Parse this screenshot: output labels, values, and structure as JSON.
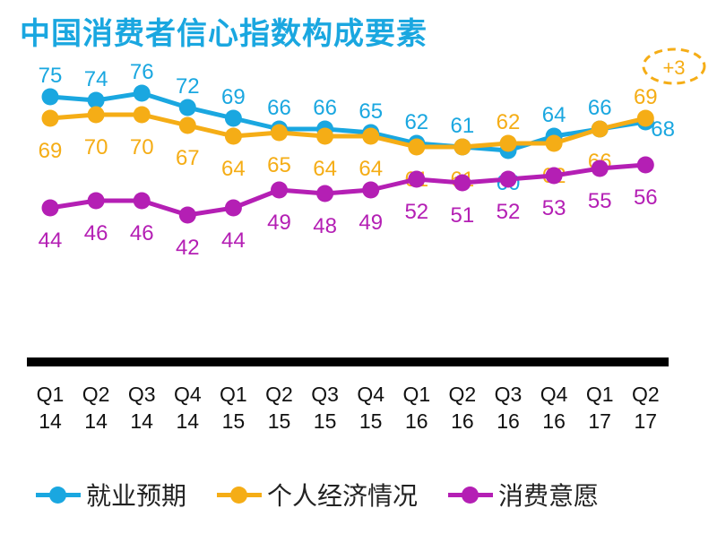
{
  "title": "中国消费者信心指数构成要素",
  "chart_data": {
    "type": "line",
    "title": "中国消费者信心指数构成要素",
    "categories": [
      {
        "q": "Q1",
        "y": "14"
      },
      {
        "q": "Q2",
        "y": "14"
      },
      {
        "q": "Q3",
        "y": "14"
      },
      {
        "q": "Q4",
        "y": "14"
      },
      {
        "q": "Q1",
        "y": "15"
      },
      {
        "q": "Q2",
        "y": "15"
      },
      {
        "q": "Q3",
        "y": "15"
      },
      {
        "q": "Q4",
        "y": "15"
      },
      {
        "q": "Q1",
        "y": "16"
      },
      {
        "q": "Q2",
        "y": "16"
      },
      {
        "q": "Q3",
        "y": "16"
      },
      {
        "q": "Q4",
        "y": "16"
      },
      {
        "q": "Q1",
        "y": "17"
      },
      {
        "q": "Q2",
        "y": "17"
      }
    ],
    "series": [
      {
        "name": "就业预期",
        "color": "#1aa7e0",
        "values": [
          75,
          74,
          76,
          72,
          69,
          66,
          66,
          65,
          62,
          61,
          60,
          64,
          66,
          68
        ],
        "label_pos": [
          "above",
          "above",
          "above",
          "above",
          "above",
          "above",
          "above",
          "above",
          "above",
          "above",
          "below",
          "above",
          "above",
          "right"
        ]
      },
      {
        "name": "个人经济情况",
        "color": "#f5ad16",
        "values": [
          69,
          70,
          70,
          67,
          64,
          65,
          64,
          64,
          61,
          61,
          62,
          62,
          66,
          69
        ],
        "label_pos": [
          "below",
          "below",
          "below",
          "below",
          "below",
          "below",
          "below",
          "below",
          "below",
          "below",
          "above",
          "below",
          "below",
          "above"
        ]
      },
      {
        "name": "消费意愿",
        "color": "#b41fb4",
        "values": [
          44,
          46,
          46,
          42,
          44,
          49,
          48,
          49,
          52,
          51,
          52,
          53,
          55,
          56
        ],
        "label_pos": [
          "below",
          "below",
          "below",
          "below",
          "below",
          "below",
          "below",
          "below",
          "below",
          "below",
          "below",
          "below",
          "below",
          "below"
        ]
      }
    ],
    "annotation": {
      "text": "+3",
      "color": "#f5ad16"
    },
    "ylim": [
      40,
      78
    ],
    "grid": false,
    "legend": "bottom"
  }
}
